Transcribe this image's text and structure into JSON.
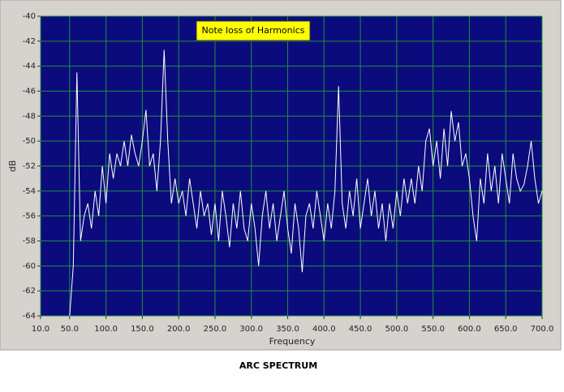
{
  "chart_data": {
    "type": "line",
    "annotation": "Note loss of Harmonics",
    "xlabel": "Frequency",
    "ylabel": "dB",
    "caption": "ARC SPECTRUM",
    "grid": true,
    "background": "#0b0b7e",
    "grid_color": "#1f8f3f",
    "xlim": [
      10,
      700
    ],
    "ylim": [
      -64,
      -40
    ],
    "xticks": [
      {
        "value": 10,
        "label": "10.0"
      },
      {
        "value": 50,
        "label": "50.0"
      },
      {
        "value": 100,
        "label": "100.0"
      },
      {
        "value": 150,
        "label": "150.0"
      },
      {
        "value": 200,
        "label": "200.0"
      },
      {
        "value": 250,
        "label": "250.0"
      },
      {
        "value": 300,
        "label": "300.0"
      },
      {
        "value": 350,
        "label": "350.0"
      },
      {
        "value": 400,
        "label": "400.0"
      },
      {
        "value": 450,
        "label": "450.0"
      },
      {
        "value": 500,
        "label": "500.0"
      },
      {
        "value": 550,
        "label": "550.0"
      },
      {
        "value": 600,
        "label": "600.0"
      },
      {
        "value": 650,
        "label": "650.0"
      },
      {
        "value": 700,
        "label": "700.0"
      }
    ],
    "yticks": [
      -64,
      -62,
      -60,
      -58,
      -56,
      -54,
      -52,
      -50,
      -48,
      -46,
      -44,
      -42,
      -40
    ],
    "x": [
      50,
      55,
      60,
      65,
      70,
      75,
      80,
      85,
      90,
      95,
      100,
      105,
      110,
      115,
      120,
      125,
      130,
      135,
      140,
      145,
      150,
      155,
      160,
      165,
      170,
      175,
      180,
      185,
      190,
      195,
      200,
      205,
      210,
      215,
      220,
      225,
      230,
      235,
      240,
      245,
      250,
      255,
      260,
      265,
      270,
      275,
      280,
      285,
      290,
      295,
      300,
      305,
      310,
      315,
      320,
      325,
      330,
      335,
      340,
      345,
      350,
      355,
      360,
      365,
      370,
      375,
      380,
      385,
      390,
      395,
      400,
      405,
      410,
      415,
      420,
      425,
      430,
      435,
      440,
      445,
      450,
      455,
      460,
      465,
      470,
      475,
      480,
      485,
      490,
      495,
      500,
      505,
      510,
      515,
      520,
      525,
      530,
      535,
      540,
      545,
      550,
      555,
      560,
      565,
      570,
      575,
      580,
      585,
      590,
      595,
      600,
      605,
      610,
      615,
      620,
      625,
      630,
      635,
      640,
      645,
      650,
      655,
      660,
      665,
      670,
      675,
      680,
      685,
      690,
      695,
      700
    ],
    "series": [
      {
        "color": "#ffffff",
        "values": [
          -64,
          -60,
          -44.5,
          -58,
          -56,
          -55,
          -57,
          -54,
          -56,
          -52,
          -55,
          -51,
          -53,
          -51,
          -52,
          -50,
          -52,
          -49.5,
          -51,
          -52,
          -50,
          -47.5,
          -52,
          -51,
          -54,
          -50,
          -42.7,
          -50,
          -55,
          -53,
          -55,
          -54,
          -56,
          -53,
          -55,
          -57,
          -54,
          -56,
          -55,
          -57.5,
          -55,
          -58,
          -54,
          -56,
          -58.5,
          -55,
          -57,
          -54,
          -57,
          -58,
          -55,
          -57,
          -60,
          -56,
          -54,
          -57,
          -55,
          -58,
          -56,
          -54,
          -57,
          -59,
          -55,
          -57,
          -60.5,
          -56,
          -55,
          -57,
          -54,
          -56,
          -58,
          -55,
          -57,
          -54,
          -45.6,
          -55,
          -57,
          -54,
          -56,
          -53,
          -57,
          -55,
          -53,
          -56,
          -54,
          -57,
          -55,
          -58,
          -55,
          -57,
          -54,
          -56,
          -53,
          -55,
          -53,
          -55,
          -52,
          -54,
          -50,
          -49,
          -52,
          -50,
          -53,
          -49,
          -52,
          -47.6,
          -50,
          -48.5,
          -52,
          -51,
          -53,
          -56,
          -58,
          -53,
          -55,
          -51,
          -54,
          -52,
          -55,
          -51,
          -53,
          -55,
          -51,
          -53,
          -54,
          -53.5,
          -52,
          -50,
          -53,
          -55,
          -54
        ]
      }
    ]
  }
}
